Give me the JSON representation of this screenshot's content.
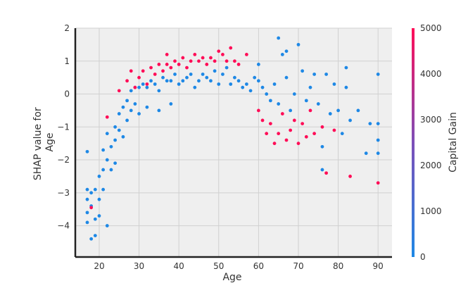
{
  "chart_data": {
    "type": "scatter",
    "title": "",
    "xlabel": "Age",
    "ylabel_lines": [
      "SHAP value for",
      "Age"
    ],
    "xlim": [
      14,
      93.5
    ],
    "ylim": [
      -4.95,
      2
    ],
    "x_ticks": [
      20,
      30,
      40,
      50,
      60,
      70,
      80,
      90
    ],
    "y_ticks": [
      2,
      1,
      0,
      -1,
      -2,
      -3,
      -4
    ],
    "grid": true,
    "colorbar": {
      "label": "Capital Gain",
      "min": 0,
      "max": 5000,
      "ticks": [
        0,
        1000,
        2000,
        3000,
        4000,
        5000
      ],
      "color_low": "#1e88e5",
      "color_mid": "#7d4fb8",
      "color_high": "#ff0d57"
    },
    "series": [
      {
        "color_value": 0,
        "points": [
          [
            17,
            -3.6
          ],
          [
            17,
            -3.2
          ],
          [
            17,
            -2.9
          ],
          [
            17,
            -3.9
          ],
          [
            17,
            -1.75
          ],
          [
            18,
            -3.0
          ],
          [
            18,
            -3.4
          ],
          [
            18,
            -4.4
          ],
          [
            19,
            -4.3
          ],
          [
            19,
            -3.8
          ],
          [
            19,
            -2.9
          ],
          [
            20,
            -3.2
          ],
          [
            20,
            -2.5
          ],
          [
            20,
            -3.7
          ],
          [
            21,
            -2.3
          ],
          [
            21,
            -2.9
          ],
          [
            21,
            -1.7
          ],
          [
            22,
            -2.0
          ],
          [
            22,
            -1.2
          ],
          [
            22,
            -4.0
          ],
          [
            23,
            -1.6
          ],
          [
            23,
            -2.3
          ],
          [
            24,
            -1.0
          ],
          [
            24,
            -1.4
          ],
          [
            24,
            -2.1
          ],
          [
            25,
            -0.6
          ],
          [
            25,
            -1.1
          ],
          [
            26,
            -0.4
          ],
          [
            26,
            -1.3
          ],
          [
            27,
            -0.2
          ],
          [
            27,
            -0.8
          ],
          [
            28,
            0.1
          ],
          [
            28,
            -0.5
          ],
          [
            29,
            0.2
          ],
          [
            29,
            -0.3
          ],
          [
            30,
            0.2
          ],
          [
            30,
            -0.6
          ],
          [
            31,
            0.3
          ],
          [
            32,
            0.2
          ],
          [
            32,
            -0.4
          ],
          [
            33,
            0.4
          ],
          [
            34,
            0.3
          ],
          [
            35,
            0.1
          ],
          [
            35,
            -0.5
          ],
          [
            36,
            0.5
          ],
          [
            37,
            0.4
          ],
          [
            38,
            0.4
          ],
          [
            38,
            -0.3
          ],
          [
            39,
            0.6
          ],
          [
            40,
            0.3
          ],
          [
            41,
            0.4
          ],
          [
            42,
            0.5
          ],
          [
            43,
            0.6
          ],
          [
            44,
            0.2
          ],
          [
            45,
            0.4
          ],
          [
            46,
            0.6
          ],
          [
            47,
            0.5
          ],
          [
            48,
            0.4
          ],
          [
            49,
            0.7
          ],
          [
            50,
            0.3
          ],
          [
            51,
            0.6
          ],
          [
            52,
            0.8
          ],
          [
            53,
            0.3
          ],
          [
            54,
            0.5
          ],
          [
            55,
            0.4
          ],
          [
            56,
            0.2
          ],
          [
            57,
            0.3
          ],
          [
            58,
            0.1
          ],
          [
            59,
            0.5
          ],
          [
            60,
            0.4
          ],
          [
            60,
            0.9
          ],
          [
            61,
            0.2
          ],
          [
            62,
            0.0
          ],
          [
            63,
            -0.2
          ],
          [
            64,
            0.3
          ],
          [
            65,
            -0.3
          ],
          [
            65,
            1.7
          ],
          [
            66,
            1.2
          ],
          [
            67,
            1.3
          ],
          [
            67,
            0.5
          ],
          [
            68,
            -0.5
          ],
          [
            69,
            0.0
          ],
          [
            70,
            1.5
          ],
          [
            71,
            0.7
          ],
          [
            72,
            -0.2
          ],
          [
            73,
            0.2
          ],
          [
            74,
            0.6
          ],
          [
            75,
            -0.3
          ],
          [
            76,
            -2.3
          ],
          [
            76,
            -1.6
          ],
          [
            77,
            0.6
          ],
          [
            78,
            -0.6
          ],
          [
            79,
            0.3
          ],
          [
            80,
            -0.5
          ],
          [
            81,
            -1.2
          ],
          [
            82,
            0.8
          ],
          [
            82,
            0.2
          ],
          [
            83,
            -0.8
          ],
          [
            85,
            -0.5
          ],
          [
            87,
            -1.8
          ],
          [
            88,
            -0.9
          ],
          [
            90,
            0.6
          ],
          [
            90,
            -0.9
          ],
          [
            90,
            -1.8
          ],
          [
            90,
            -1.4
          ]
        ]
      },
      {
        "color_value": 5000,
        "points": [
          [
            18,
            -3.45
          ],
          [
            22,
            -0.7
          ],
          [
            25,
            0.1
          ],
          [
            27,
            0.4
          ],
          [
            28,
            0.7
          ],
          [
            29,
            0.2
          ],
          [
            30,
            0.5
          ],
          [
            31,
            0.7
          ],
          [
            32,
            0.3
          ],
          [
            33,
            0.8
          ],
          [
            34,
            0.6
          ],
          [
            35,
            0.9
          ],
          [
            36,
            0.7
          ],
          [
            37,
            0.9
          ],
          [
            37,
            1.2
          ],
          [
            38,
            0.8
          ],
          [
            39,
            1.0
          ],
          [
            40,
            0.9
          ],
          [
            41,
            1.1
          ],
          [
            42,
            0.8
          ],
          [
            43,
            1.0
          ],
          [
            44,
            1.2
          ],
          [
            45,
            1.0
          ],
          [
            46,
            1.1
          ],
          [
            47,
            0.9
          ],
          [
            48,
            1.1
          ],
          [
            49,
            1.0
          ],
          [
            50,
            1.3
          ],
          [
            51,
            1.2
          ],
          [
            52,
            1.0
          ],
          [
            53,
            1.4
          ],
          [
            54,
            1.0
          ],
          [
            55,
            0.9
          ],
          [
            57,
            1.2
          ],
          [
            60,
            -0.5
          ],
          [
            61,
            -0.8
          ],
          [
            62,
            -1.2
          ],
          [
            63,
            -0.9
          ],
          [
            64,
            -1.5
          ],
          [
            65,
            -1.2
          ],
          [
            66,
            -0.6
          ],
          [
            67,
            -1.4
          ],
          [
            68,
            -1.1
          ],
          [
            69,
            -0.8
          ],
          [
            70,
            -1.5
          ],
          [
            71,
            -0.9
          ],
          [
            72,
            -1.3
          ],
          [
            73,
            -0.5
          ],
          [
            74,
            -1.2
          ],
          [
            76,
            -1.0
          ],
          [
            77,
            -2.4
          ],
          [
            79,
            -1.1
          ],
          [
            83,
            -2.5
          ],
          [
            90,
            -2.7
          ]
        ]
      }
    ]
  }
}
